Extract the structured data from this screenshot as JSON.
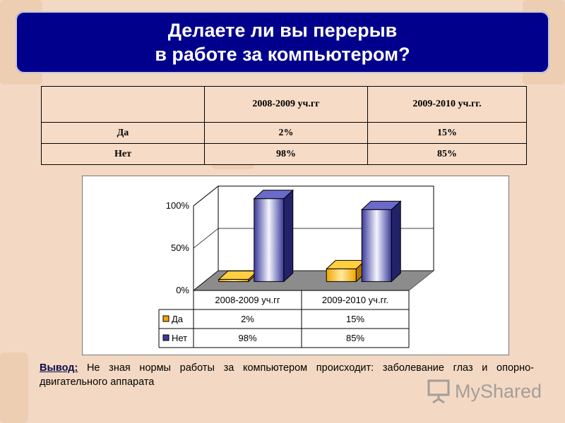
{
  "title": {
    "line1": "Делаете ли вы перерыв",
    "line2": "в работе за компьютером?"
  },
  "table": {
    "headers": [
      "",
      "2008-2009 уч.гг",
      "2009-2010 уч.гг."
    ],
    "rows": [
      {
        "label": "Да",
        "values": [
          "2%",
          "15%"
        ]
      },
      {
        "label": "Нет",
        "values": [
          "98%",
          "85%"
        ]
      }
    ]
  },
  "chart_data": {
    "type": "bar",
    "categories": [
      "2008-2009 уч.гг",
      "2009-2010 уч.гг."
    ],
    "series": [
      {
        "name": "Да",
        "values": [
          2,
          15
        ],
        "labels": [
          "2%",
          "15%"
        ],
        "color": "#f2a600"
      },
      {
        "name": "Нет",
        "values": [
          98,
          85
        ],
        "labels": [
          "98%",
          "85%"
        ],
        "color": "#3a3a9a"
      }
    ],
    "ylim": [
      0,
      100
    ],
    "yticks": [
      "0%",
      "50%",
      "100%"
    ],
    "yticks_values": [
      0,
      50,
      100
    ],
    "three_d": true,
    "data_table": true,
    "legend": "data-table-left"
  },
  "conclusion": {
    "label": "Вывод:",
    "text": " Не зная нормы работы за компьютером происходит: заболевание глаз и опорно-двигательного аппарата"
  },
  "watermark": {
    "text": "MyShared"
  },
  "colors": {
    "banner": "#01008d",
    "background": "#f3d9c3"
  }
}
